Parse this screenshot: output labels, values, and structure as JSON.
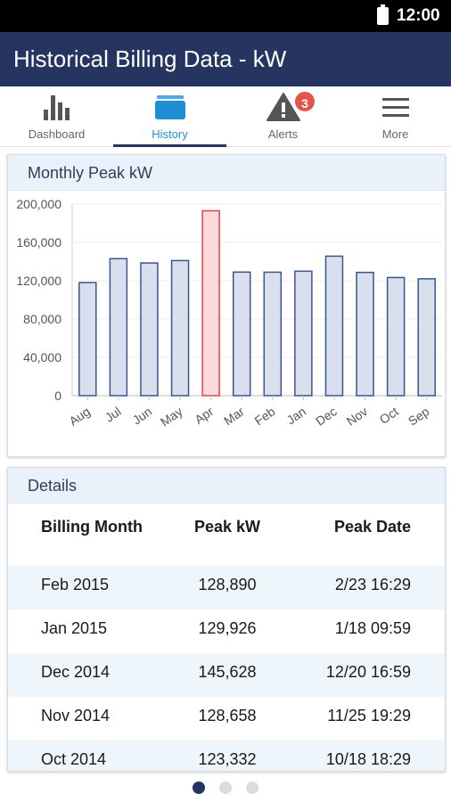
{
  "status_bar": {
    "time": "12:00"
  },
  "app_bar": {
    "title": "Historical Billing Data - kW"
  },
  "tabs": [
    {
      "label": "Dashboard",
      "icon": "bar-chart-icon",
      "active": false
    },
    {
      "label": "History",
      "icon": "folder-icon",
      "active": true
    },
    {
      "label": "Alerts",
      "icon": "warning-icon",
      "active": false,
      "badge": "3"
    },
    {
      "label": "More",
      "icon": "menu-icon",
      "active": false
    }
  ],
  "chart_card": {
    "header": "Monthly Peak kW"
  },
  "chart_data": {
    "type": "bar",
    "title": "Monthly Peak kW",
    "categories": [
      "Aug",
      "Jul",
      "Jun",
      "May",
      "Apr",
      "Mar",
      "Feb",
      "Jan",
      "Dec",
      "Nov",
      "Oct",
      "Sep"
    ],
    "values": [
      118000,
      143000,
      138500,
      141000,
      193000,
      129000,
      128890,
      129926,
      145628,
      128658,
      123332,
      122000
    ],
    "highlight_index": 4,
    "ylim": [
      0,
      200000
    ],
    "yticks": [
      "0",
      "40,000",
      "80,000",
      "120,000",
      "160,000",
      "200,000"
    ],
    "colors": {
      "bar_fill": "#d9dfec",
      "bar_stroke": "#3a5590",
      "highlight_fill": "#fdd9da",
      "highlight_stroke": "#e0464c"
    },
    "grid": true
  },
  "details_card": {
    "header": "Details",
    "columns": [
      "Billing Month",
      "Peak kW",
      "Peak Date"
    ],
    "rows": [
      {
        "month": "Feb 2015",
        "peak_kw": "128,890",
        "peak_date": "2/23 16:29"
      },
      {
        "month": "Jan 2015",
        "peak_kw": "129,926",
        "peak_date": "1/18 09:59"
      },
      {
        "month": "Dec 2014",
        "peak_kw": "145,628",
        "peak_date": "12/20 16:59"
      },
      {
        "month": "Nov 2014",
        "peak_kw": "128,658",
        "peak_date": "11/25 19:29"
      },
      {
        "month": "Oct 2014",
        "peak_kw": "123,332",
        "peak_date": "10/18 18:29"
      }
    ]
  },
  "pager": {
    "pages": 3,
    "current": 1
  }
}
